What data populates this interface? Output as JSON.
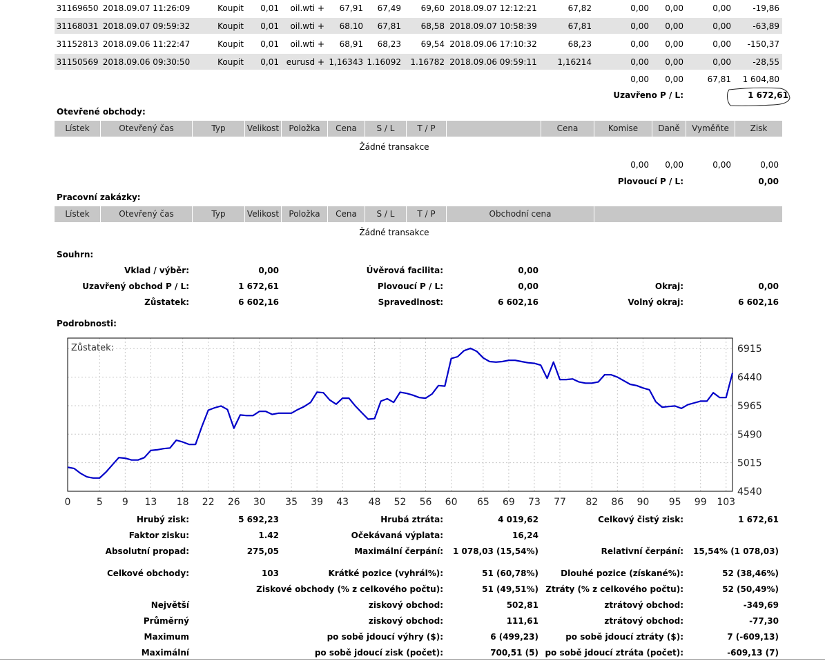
{
  "closed_trades": {
    "rows": [
      [
        "31169650",
        "2018.09.07 11:26:09",
        "Koupit",
        "0,01",
        "oil.wti +",
        "67,91",
        "67,49",
        "69,60",
        "2018.09.07 12:12:21",
        "67,82",
        "0,00",
        "0,00",
        "0,00",
        "-19,86"
      ],
      [
        "31168031",
        "2018.09.07 09:59:32",
        "Koupit",
        "0,01",
        "oil.wti +",
        "68.10",
        "67,81",
        "68,58",
        "2018.09.07 10:58:39",
        "67,81",
        "0,00",
        "0,00",
        "0,00",
        "-63,89"
      ],
      [
        "31152813",
        "2018.09.06 11:22:47",
        "Koupit",
        "0,01",
        "oil.wti +",
        "68,91",
        "68,23",
        "69,54",
        "2018.09.06 17:10:32",
        "68,23",
        "0,00",
        "0,00",
        "0,00",
        "-150,37"
      ],
      [
        "31150569",
        "2018.09.06 09:30:50",
        "Koupit",
        "0,01",
        "eurusd +",
        "1,16343",
        "1.16092",
        "1.16782",
        "2018.09.06 09:59:11",
        "1,16214",
        "0,00",
        "0,00",
        "0,00",
        "-28,55"
      ]
    ],
    "totals": [
      "0,00",
      "0,00",
      "67,81",
      "1 604,80"
    ],
    "closed_pl_label": "Uzavřeno P / L:",
    "closed_pl_value": "1 672,61"
  },
  "open_trades": {
    "title": "Otevřené obchody:",
    "headers": [
      "Lístek",
      "Otevřený čas",
      "Typ",
      "Velikost",
      "Položka",
      "Cena",
      "S / L",
      "T / P",
      "",
      "Cena",
      "Komise",
      "Daně",
      "Vyměňte",
      "Zisk"
    ],
    "empty": "Žádné transakce",
    "totals": [
      "0,00",
      "0,00",
      "0,00",
      "0,00"
    ],
    "floating_label": "Plovoucí P / L:",
    "floating_value": "0,00"
  },
  "working_orders": {
    "title": "Pracovní zakázky:",
    "headers": [
      "Lístek",
      "Otevřený čas",
      "Typ",
      "Velikost",
      "Položka",
      "Cena",
      "S / L",
      "T / P",
      "Obchodní cena"
    ],
    "empty": "Žádné transakce"
  },
  "summary": {
    "title": "Souhrn:",
    "deposit_label": "Vklad / výběr:",
    "deposit_value": "0,00",
    "credit_label": "Úvěrová facilita:",
    "credit_value": "0,00",
    "closed_pl_label": "Uzavřený obchod P / L:",
    "closed_pl_value": "1 672,61",
    "floating_label": "Plovoucí P / L:",
    "floating_value": "0,00",
    "margin_label": "Okraj:",
    "margin_value": "0,00",
    "balance_label": "Zůstatek:",
    "balance_value": "6 602,16",
    "equity_label": "Spravedlnost:",
    "equity_value": "6 602,16",
    "free_margin_label": "Volný okraj:",
    "free_margin_value": "6 602,16"
  },
  "details": {
    "title": "Podrobnosti:"
  },
  "chart_data": {
    "type": "line",
    "title": "Zůstatek:",
    "series": [
      {
        "name": "Zůstatek",
        "x": [
          0,
          1,
          2,
          3,
          4,
          5,
          6,
          7,
          8,
          9,
          10,
          11,
          12,
          13,
          14,
          15,
          16,
          17,
          18,
          19,
          20,
          21,
          22,
          23,
          24,
          25,
          26,
          27,
          28,
          29,
          30,
          31,
          32,
          33,
          34,
          35,
          36,
          37,
          38,
          39,
          40,
          41,
          42,
          43,
          44,
          45,
          46,
          47,
          48,
          49,
          50,
          51,
          52,
          53,
          54,
          55,
          56,
          57,
          58,
          59,
          60,
          61,
          62,
          63,
          64,
          65,
          66,
          67,
          68,
          69,
          70,
          71,
          72,
          73,
          74,
          75,
          76,
          77,
          78,
          79,
          80,
          81,
          82,
          83,
          84,
          85,
          86,
          87,
          88,
          89,
          90,
          91,
          92,
          93,
          94,
          95,
          96,
          97,
          98,
          99,
          100,
          101,
          102,
          103,
          104
        ],
        "values": [
          4940,
          4920,
          4840,
          4780,
          4760,
          4760,
          4860,
          4980,
          5100,
          5090,
          5060,
          5060,
          5100,
          5220,
          5230,
          5250,
          5260,
          5390,
          5360,
          5320,
          5320,
          5620,
          5890,
          5930,
          5960,
          5900,
          5590,
          5810,
          5800,
          5800,
          5870,
          5870,
          5820,
          5840,
          5840,
          5840,
          5900,
          5950,
          6020,
          6190,
          6180,
          6060,
          5990,
          6090,
          6090,
          5960,
          5850,
          5740,
          5750,
          6040,
          6080,
          6020,
          6190,
          6170,
          6140,
          6100,
          6090,
          6160,
          6300,
          6290,
          6750,
          6780,
          6880,
          6920,
          6870,
          6760,
          6700,
          6690,
          6700,
          6720,
          6720,
          6700,
          6680,
          6670,
          6640,
          6420,
          6690,
          6400,
          6400,
          6410,
          6360,
          6340,
          6340,
          6360,
          6480,
          6480,
          6440,
          6380,
          6320,
          6300,
          6260,
          6230,
          6030,
          5940,
          5950,
          5960,
          5920,
          5980,
          6010,
          6040,
          6040,
          6180,
          6100,
          6100,
          6510
        ]
      }
    ],
    "xticks": [
      "0",
      "5",
      "9",
      "13",
      "18",
      "22",
      "26",
      "30",
      "35",
      "39",
      "43",
      "48",
      "52",
      "56",
      "60",
      "65",
      "69",
      "73",
      "77",
      "82",
      "86",
      "90",
      "95",
      "99",
      "103"
    ],
    "xtick_values": [
      0,
      5,
      9,
      13,
      18,
      22,
      26,
      30,
      35,
      39,
      43,
      48,
      52,
      56,
      60,
      65,
      69,
      73,
      77,
      82,
      86,
      90,
      95,
      99,
      103
    ],
    "yticks": [
      "6915",
      "6440",
      "5965",
      "5490",
      "5015",
      "4540"
    ],
    "ytick_values": [
      6915,
      6440,
      5965,
      5490,
      5015,
      4540
    ],
    "xlim": [
      0,
      104
    ],
    "ylim": [
      4540,
      7090
    ],
    "grid": true,
    "line_color": "#0000c8"
  },
  "stats": {
    "gross_profit_label": "Hrubý zisk:",
    "gross_profit_value": "5 692,23",
    "gross_loss_label": "Hrubá ztráta:",
    "gross_loss_value": "4 019,62",
    "total_net_label": "Celkový čistý zisk:",
    "total_net_value": "1 672,61",
    "profit_factor_label": "Faktor zisku:",
    "profit_factor_value": "1.42",
    "expected_payoff_label": "Očekávaná výplata:",
    "expected_payoff_value": "16,24",
    "abs_dd_label": "Absolutní propad:",
    "abs_dd_value": "275,05",
    "max_dd_label": "Maximální čerpání:",
    "max_dd_value": "1 078,03 (15,54%)",
    "rel_dd_label": "Relativní čerpání:",
    "rel_dd_value": "15,54% (1 078,03)",
    "total_trades_label": "Celkové obchody:",
    "total_trades_value": "103",
    "short_label": "Krátké pozice (vyhrál%):",
    "short_value": "51 (60,78%)",
    "long_label": "Dlouhé pozice (získané%):",
    "long_value": "52 (38,46%)",
    "profit_trades_label": "Ziskové obchody (% z celkového počtu):",
    "profit_trades_value": "51 (49,51%)",
    "loss_trades_label": "Ztráty (% z celkového počtu):",
    "loss_trades_value": "52 (50,49%)",
    "largest_label": "Největší",
    "largest_profit_label": "ziskový obchod:",
    "largest_profit_value": "502,81",
    "largest_loss_label": "ztrátový obchod:",
    "largest_loss_value": "-349,69",
    "average_label": "Průměrný",
    "average_profit_label": "ziskový obchod:",
    "average_profit_value": "111,61",
    "average_loss_label": "ztrátový obchod:",
    "average_loss_value": "-77,30",
    "maximum_label": "Maximum",
    "max_wins_label": "po sobě jdoucí výhry ($):",
    "max_wins_value": "6 (499,23)",
    "max_losses_label": "po sobě jdoucí ztráty ($):",
    "max_losses_value": "7 (-609,13)",
    "maximal_label": "Maximální",
    "maximal_profit_label": "po sobě jdoucí zisk (počet):",
    "maximal_profit_value": "700,51 (5)",
    "maximal_loss_label": "po sobě jdoucí ztráta (počet):",
    "maximal_loss_value": "-609,13 (7)"
  }
}
